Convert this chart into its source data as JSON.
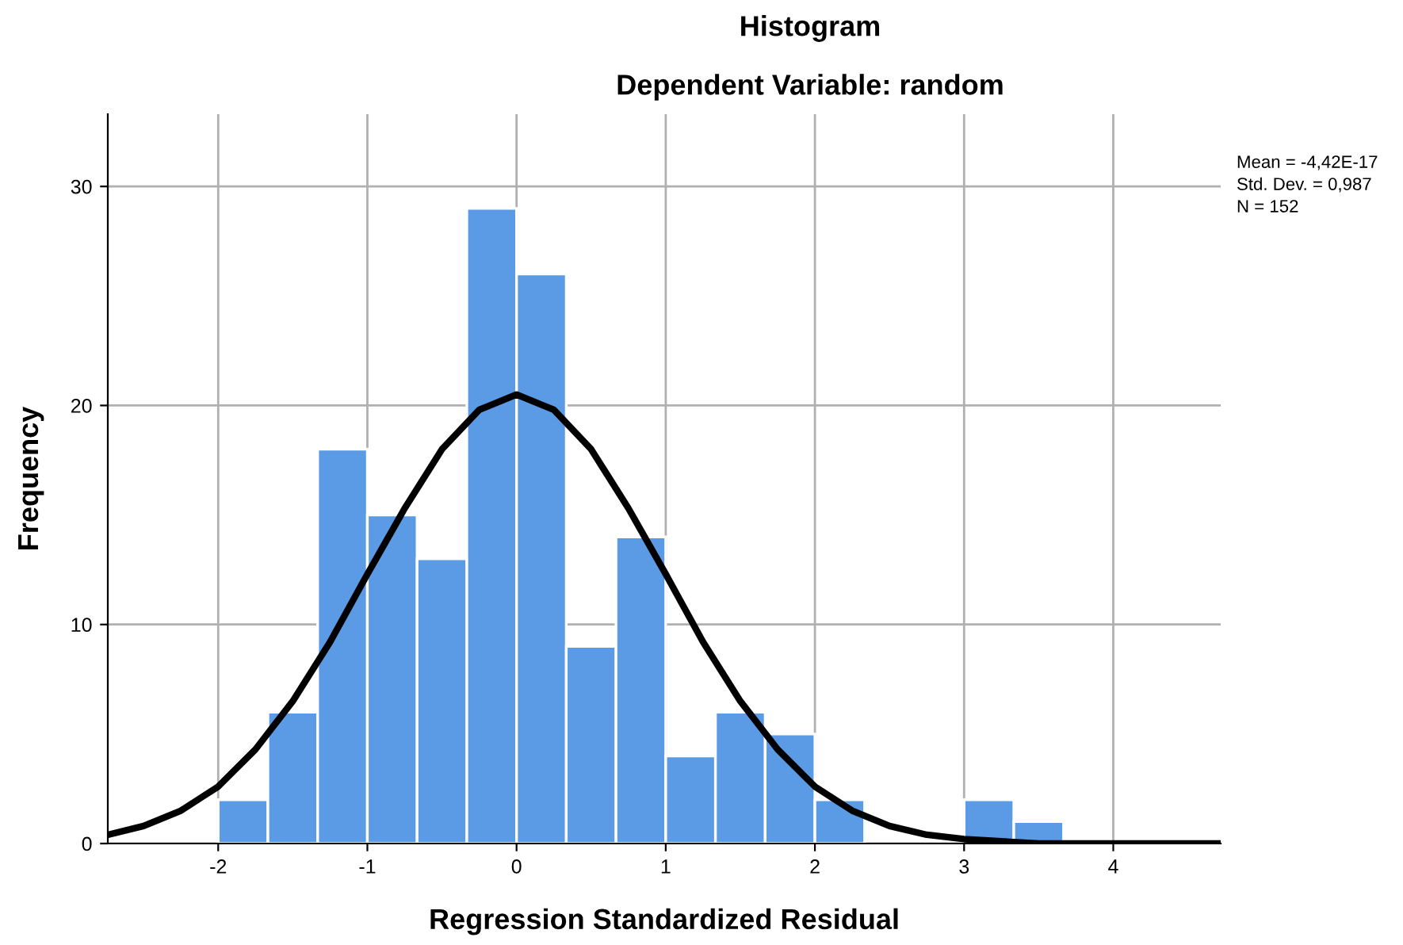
{
  "chart_data": {
    "type": "histogram",
    "title": "Histogram",
    "subtitle": "Dependent Variable: random",
    "xlabel": "Regression Standardized Residual",
    "ylabel": "Frequency",
    "bins": [
      -2,
      -1.6667,
      -1.3333,
      -1,
      -0.6667,
      -0.3333,
      0,
      0.3333,
      0.6667,
      1,
      1.3333,
      1.6667,
      2,
      2.3333,
      2.6667,
      3,
      3.3333,
      3.6667
    ],
    "series": [
      {
        "color": "#5b9be6",
        "values": [
          2,
          6,
          18,
          15,
          13,
          29,
          26,
          9,
          14,
          4,
          6,
          5,
          2,
          0,
          0,
          2,
          1
        ]
      },
      {
        "type": "line",
        "color": "#000000",
        "x": [
          -2.74,
          -2.5,
          -2.25,
          -2,
          -1.75,
          -1.5,
          -1.25,
          -1,
          -0.75,
          -0.5,
          -0.25,
          0,
          0.25,
          0.5,
          0.75,
          1,
          1.25,
          1.5,
          1.75,
          2,
          2.25,
          2.5,
          2.75,
          3,
          3.5,
          4,
          4.72
        ],
        "values": [
          0.4,
          0.8,
          1.5,
          2.6,
          4.3,
          6.5,
          9.2,
          12.3,
          15.3,
          18.0,
          19.8,
          20.5,
          19.8,
          18.0,
          15.3,
          12.3,
          9.2,
          6.5,
          4.3,
          2.6,
          1.5,
          0.8,
          0.4,
          0.2,
          0.0,
          0.0,
          0.0
        ]
      }
    ],
    "xlim": [
      -2.74,
      4.72
    ],
    "ylim": [
      0,
      33.3
    ],
    "xticks": [
      -2,
      -1,
      0,
      1,
      2,
      3,
      4
    ],
    "yticks": [
      0,
      10,
      20,
      30
    ],
    "grid": true,
    "annotations": [
      "Mean = -4,42E-17",
      "Std. Dev. = 0,987",
      "N = 152"
    ]
  }
}
